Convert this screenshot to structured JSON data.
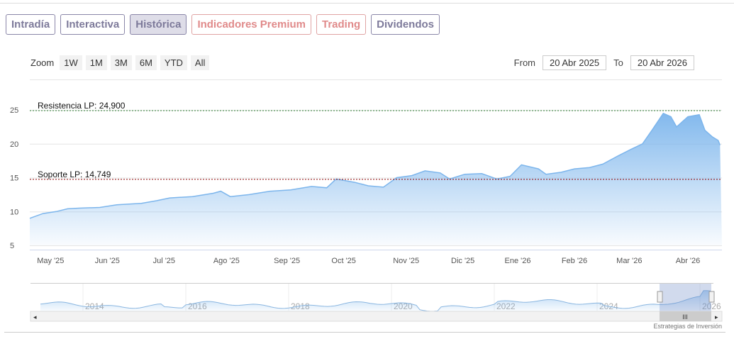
{
  "tabs": [
    {
      "label": "Intradía",
      "style": "normal"
    },
    {
      "label": "Interactiva",
      "style": "normal"
    },
    {
      "label": "Histórica",
      "style": "active"
    },
    {
      "label": "Indicadores Premium",
      "style": "red"
    },
    {
      "label": "Trading",
      "style": "red"
    },
    {
      "label": "Dividendos",
      "style": "normal"
    }
  ],
  "zoom": {
    "label": "Zoom",
    "buttons": [
      "1W",
      "1M",
      "3M",
      "6M",
      "YTD",
      "All"
    ]
  },
  "range": {
    "from_label": "From",
    "from": "20 Abr 2025",
    "to_label": "To",
    "to": "20 Abr 2026"
  },
  "credit": "Estrategias de Inversión",
  "colors": {
    "line": "#7cb5ec",
    "resistance": "#2e7d32",
    "support": "#8b0000"
  },
  "chart_data": {
    "type": "area",
    "start_date": "2025-04-20",
    "total_days": 366,
    "x_days": [
      0,
      7,
      14,
      20,
      26,
      37,
      46,
      59,
      67,
      74,
      86,
      97,
      101,
      106,
      116,
      127,
      138,
      149,
      157,
      162,
      172,
      179,
      187,
      194,
      202,
      209,
      217,
      222,
      230,
      239,
      247,
      254,
      260,
      269,
      273,
      281,
      288,
      296,
      303,
      311,
      318,
      324,
      329,
      335,
      339,
      342,
      348,
      354,
      357,
      361,
      364,
      365
    ],
    "values": [
      9.0,
      9.7,
      10.0,
      10.4,
      10.5,
      10.6,
      11.0,
      11.2,
      11.6,
      12.0,
      12.2,
      12.7,
      13.0,
      12.2,
      12.5,
      13.0,
      13.2,
      13.7,
      13.5,
      14.8,
      14.3,
      13.8,
      13.6,
      15.0,
      15.3,
      16.0,
      15.7,
      14.8,
      15.5,
      15.6,
      14.8,
      15.2,
      16.9,
      16.3,
      15.5,
      15.8,
      16.3,
      16.5,
      17.0,
      18.2,
      19.2,
      20.0,
      22.0,
      24.5,
      24.0,
      22.5,
      24.0,
      24.3,
      22.0,
      21.0,
      20.5,
      19.8
    ],
    "ylim": [
      5,
      25
    ],
    "yticks": [
      5,
      10,
      15,
      20,
      25
    ],
    "xticks": [
      {
        "label": "May '25",
        "day": 11
      },
      {
        "label": "Jun '25",
        "day": 41
      },
      {
        "label": "Jul '25",
        "day": 71
      },
      {
        "label": "Ago '25",
        "day": 104
      },
      {
        "label": "Sep '25",
        "day": 136
      },
      {
        "label": "Oct '25",
        "day": 166
      },
      {
        "label": "Nov '25",
        "day": 199
      },
      {
        "label": "Dic '25",
        "day": 229
      },
      {
        "label": "Ene '26",
        "day": 258
      },
      {
        "label": "Feb '26",
        "day": 288
      },
      {
        "label": "Mar '26",
        "day": 317
      },
      {
        "label": "Abr '26",
        "day": 348
      }
    ],
    "annotations": [
      {
        "label": "Resistencia LP: 24,900",
        "value": 24.9
      },
      {
        "label": "Soporte LP: 14,749",
        "value": 14.749
      }
    ],
    "navigator": {
      "years": [
        "2014",
        "2016",
        "2018",
        "2020",
        "2022",
        "2024",
        "2026"
      ]
    }
  }
}
